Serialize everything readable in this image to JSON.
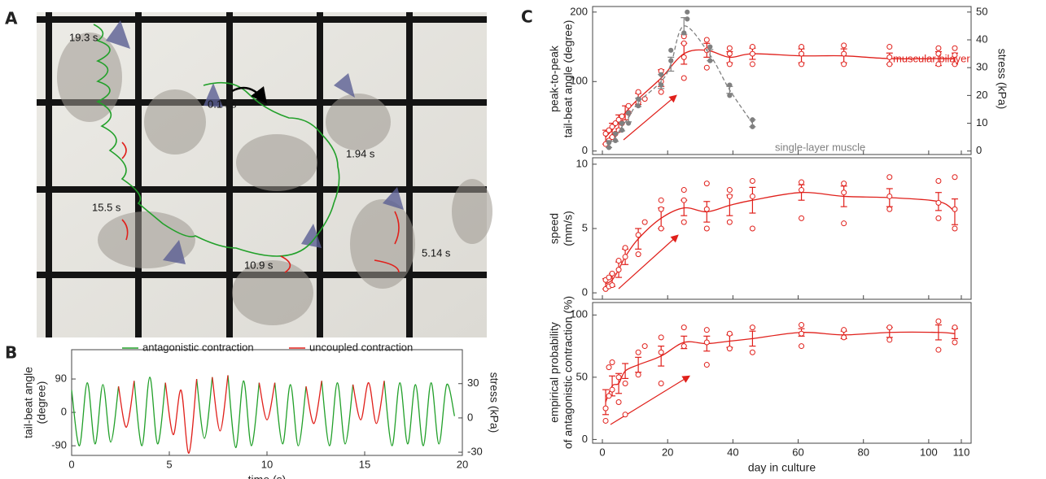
{
  "panel_labels": [
    "A",
    "B",
    "C"
  ],
  "photo": {
    "time_labels": [
      "19.3 s",
      "0.14 s",
      "1.94 s",
      "15.5 s",
      "10.9 s",
      "5.14 s"
    ]
  },
  "chart_data": [
    {
      "type": "line",
      "xlabel": "time (s)",
      "ylabel": [
        "tail-beat angle",
        "(degree)"
      ],
      "y2label": "stress (kPa)",
      "x": [
        0,
        0.4,
        0.8,
        1.2,
        1.6,
        2,
        2.4,
        2.8,
        3.2,
        3.6,
        4,
        4.4,
        4.8,
        5.2,
        5.6,
        6,
        6.4,
        6.8,
        7.2,
        7.6,
        8,
        8.4,
        8.8,
        9.2,
        9.6,
        10,
        10.4,
        10.8,
        11.2,
        11.6,
        12,
        12.4,
        12.8,
        13.2,
        13.6,
        14,
        14.4,
        14.8,
        15.2,
        15.6,
        16,
        16.4,
        16.8,
        17.2,
        17.6,
        18,
        18.4,
        18.8,
        19.2,
        19.6
      ],
      "series": [
        {
          "name": "antagonistic contraction",
          "color": "#22a02a",
          "values": [
            60,
            -90,
            80,
            -85,
            75,
            -80,
            70,
            null,
            85,
            -90,
            95,
            -85,
            80,
            null,
            null,
            null,
            90,
            -70,
            95,
            null,
            100,
            -95,
            85,
            -90,
            80,
            null,
            80,
            -85,
            75,
            -90,
            70,
            null,
            85,
            -90,
            80,
            -85,
            75,
            null,
            null,
            null,
            85,
            -90,
            80,
            -85,
            75,
            -90,
            80,
            -85,
            75,
            -10
          ]
        },
        {
          "name": "uncoupled contraction",
          "color": "#e0201b",
          "values": [
            null,
            null,
            null,
            null,
            null,
            null,
            70,
            -40,
            85,
            null,
            null,
            null,
            80,
            -60,
            60,
            -110,
            90,
            null,
            95,
            -50,
            100,
            null,
            null,
            null,
            80,
            -20,
            80,
            null,
            null,
            null,
            70,
            -30,
            85,
            null,
            null,
            null,
            75,
            -20,
            80,
            -30,
            85,
            null,
            null,
            null,
            null,
            null,
            null,
            null,
            null,
            null
          ]
        }
      ],
      "xlim": [
        0,
        20
      ],
      "xticks": [
        0,
        5,
        10,
        15,
        20
      ],
      "ylim": [
        -116,
        169
      ],
      "yticks": [
        -90,
        0,
        90
      ],
      "y2lim": [
        -32.8,
        59.7
      ],
      "y2ticks": [
        -30,
        0,
        30
      ]
    },
    {
      "type": "scatter",
      "ylabel": [
        "peak-to-peak",
        "tail-beat angle (degree)"
      ],
      "y2label": "stress (kPa)",
      "xlim": [
        -3,
        113
      ],
      "ylim": [
        -5,
        208
      ],
      "yticks": [
        0,
        100,
        200
      ],
      "y2lim": [
        -1.25,
        52
      ],
      "y2ticks": [
        0,
        10,
        20,
        30,
        40,
        50
      ],
      "series": [
        {
          "name": "muscular bilayer",
          "color": "#e0201b",
          "marker": "open",
          "dash": false,
          "x": [
            1,
            3,
            5,
            7,
            11,
            18,
            25,
            32,
            39,
            46,
            61,
            74,
            88,
            103,
            108
          ],
          "values": [
            20,
            30,
            42,
            55,
            75,
            105,
            140,
            145,
            135,
            140,
            137,
            137,
            133,
            133,
            133
          ],
          "errors": [
            10,
            10,
            10,
            10,
            8,
            12,
            15,
            10,
            8,
            8,
            10,
            10,
            8,
            10,
            8
          ],
          "points_x": [
            1,
            1,
            2,
            2,
            3,
            3,
            4,
            4,
            5,
            5,
            6,
            6,
            8,
            8,
            11,
            11,
            13,
            18,
            18,
            18,
            25,
            25,
            25,
            25,
            32,
            32,
            32,
            39,
            39,
            39,
            46,
            46,
            46,
            61,
            61,
            61,
            74,
            74,
            74,
            88,
            88,
            88,
            103,
            103,
            103,
            108,
            108,
            108
          ],
          "points_y": [
            10,
            25,
            15,
            30,
            20,
            35,
            25,
            40,
            30,
            45,
            40,
            50,
            55,
            65,
            70,
            85,
            75,
            85,
            100,
            115,
            105,
            135,
            155,
            165,
            120,
            145,
            160,
            125,
            140,
            148,
            125,
            140,
            150,
            125,
            140,
            150,
            125,
            140,
            152,
            125,
            135,
            150,
            125,
            140,
            148,
            125,
            138,
            148
          ]
        },
        {
          "name": "single-layer muscle",
          "color": "#808080",
          "marker": "filled",
          "dash": true,
          "x": [
            2,
            4,
            6,
            8,
            11,
            18,
            21,
            25,
            33,
            39,
            46
          ],
          "values": [
            10,
            20,
            35,
            48,
            70,
            100,
            125,
            180,
            138,
            88,
            40
          ],
          "errors": [
            5,
            6,
            6,
            6,
            6,
            10,
            10,
            12,
            8,
            5,
            5
          ],
          "points_x": [
            2,
            2,
            4,
            4,
            6,
            6,
            8,
            8,
            11,
            11,
            18,
            18,
            21,
            21,
            25,
            26,
            26,
            33,
            33,
            39,
            39,
            46,
            46
          ],
          "points_y": [
            5,
            12,
            15,
            25,
            30,
            40,
            40,
            55,
            65,
            75,
            95,
            110,
            130,
            145,
            170,
            190,
            200,
            130,
            150,
            80,
            95,
            35,
            45
          ]
        }
      ]
    },
    {
      "type": "scatter",
      "ylabel": [
        "speed",
        "(mm/s)"
      ],
      "xlim": [
        -3,
        113
      ],
      "ylim": [
        -0.5,
        10.5
      ],
      "yticks": [
        0,
        5,
        10
      ],
      "series": [
        {
          "color": "#e0201b",
          "marker": "open",
          "dash": false,
          "x": [
            1,
            3,
            5,
            7,
            11,
            18,
            25,
            32,
            39,
            46,
            61,
            74,
            88,
            103,
            108
          ],
          "values": [
            0.7,
            1.0,
            1.8,
            2.8,
            4.2,
            5.8,
            6.6,
            6.3,
            6.8,
            7.2,
            7.8,
            7.5,
            7.4,
            7.1,
            6.3
          ],
          "errors": [
            0.4,
            0.5,
            0.6,
            0.6,
            0.8,
            0.8,
            0.6,
            0.8,
            0.8,
            1.0,
            0.6,
            0.8,
            0.7,
            0.7,
            1.0
          ],
          "points_x": [
            1,
            1,
            2,
            2,
            3,
            3,
            5,
            5,
            7,
            7,
            11,
            11,
            13,
            18,
            18,
            18,
            25,
            25,
            25,
            32,
            32,
            32,
            39,
            39,
            39,
            46,
            46,
            46,
            61,
            61,
            61,
            74,
            74,
            74,
            88,
            88,
            88,
            103,
            103,
            103,
            108,
            108,
            108
          ],
          "points_y": [
            0.3,
            1.0,
            0.5,
            1.2,
            0.6,
            1.5,
            1.8,
            2.5,
            2.8,
            3.5,
            3.0,
            4.5,
            5.5,
            5.0,
            6.5,
            7.2,
            5.5,
            7.2,
            8.0,
            5.0,
            6.5,
            8.5,
            5.5,
            7.5,
            8.0,
            5.0,
            7.5,
            8.7,
            5.8,
            8.0,
            8.6,
            5.4,
            7.8,
            8.5,
            6.5,
            7.5,
            9.0,
            5.8,
            7.0,
            8.7,
            5.0,
            6.5,
            9.0
          ]
        }
      ]
    },
    {
      "type": "scatter",
      "xlabel": "day in culture",
      "ylabel": [
        "empirical probability",
        "of antagonistic contraction (%)"
      ],
      "xlim": [
        -3,
        113
      ],
      "xticks": [
        0,
        20,
        40,
        60,
        80,
        100,
        110
      ],
      "ylim": [
        -3,
        110
      ],
      "yticks": [
        0,
        50,
        100
      ],
      "series": [
        {
          "color": "#e0201b",
          "marker": "open",
          "dash": false,
          "x": [
            1,
            3,
            5,
            7,
            11,
            18,
            25,
            32,
            39,
            46,
            61,
            74,
            88,
            103,
            108
          ],
          "values": [
            30,
            43,
            45,
            55,
            60,
            67,
            78,
            77,
            79,
            81,
            86,
            84,
            86,
            86,
            85
          ],
          "errors": [
            10,
            8,
            8,
            6,
            6,
            8,
            5,
            6,
            5,
            6,
            3,
            3,
            4,
            6,
            4
          ],
          "points_x": [
            1,
            1,
            2,
            2,
            3,
            3,
            5,
            5,
            7,
            7,
            11,
            11,
            13,
            18,
            18,
            18,
            25,
            25,
            32,
            32,
            32,
            39,
            39,
            46,
            46,
            61,
            61,
            61,
            74,
            74,
            88,
            88,
            103,
            103,
            108,
            108
          ],
          "points_y": [
            15,
            25,
            35,
            58,
            40,
            62,
            30,
            50,
            20,
            45,
            52,
            70,
            75,
            45,
            70,
            82,
            75,
            90,
            60,
            78,
            88,
            73,
            85,
            70,
            90,
            75,
            85,
            92,
            82,
            88,
            80,
            90,
            72,
            95,
            78,
            90
          ]
        }
      ]
    }
  ]
}
